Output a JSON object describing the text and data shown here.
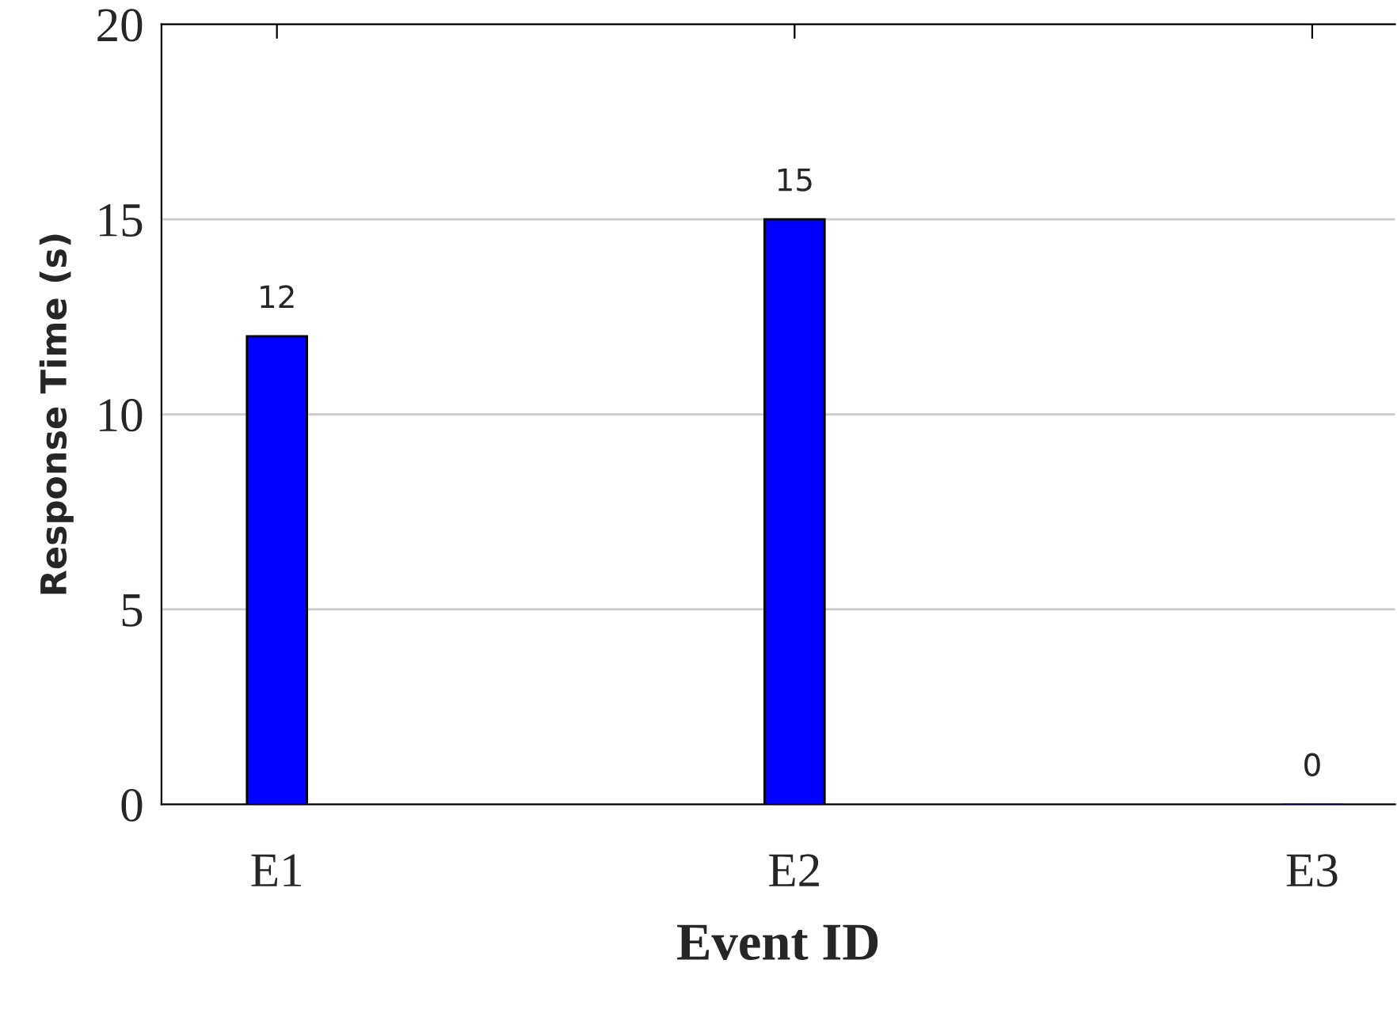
{
  "chart_data": {
    "type": "bar",
    "xlabel": "Event ID",
    "ylabel": "Response Time (s)",
    "categories": [
      "E1",
      "E2",
      "E3"
    ],
    "values": [
      12,
      15,
      0
    ],
    "color": "#0000ff",
    "ylim": [
      0,
      20
    ],
    "yticks": [
      0,
      5,
      10,
      15,
      20
    ],
    "grid": "y",
    "data_labels": true
  }
}
